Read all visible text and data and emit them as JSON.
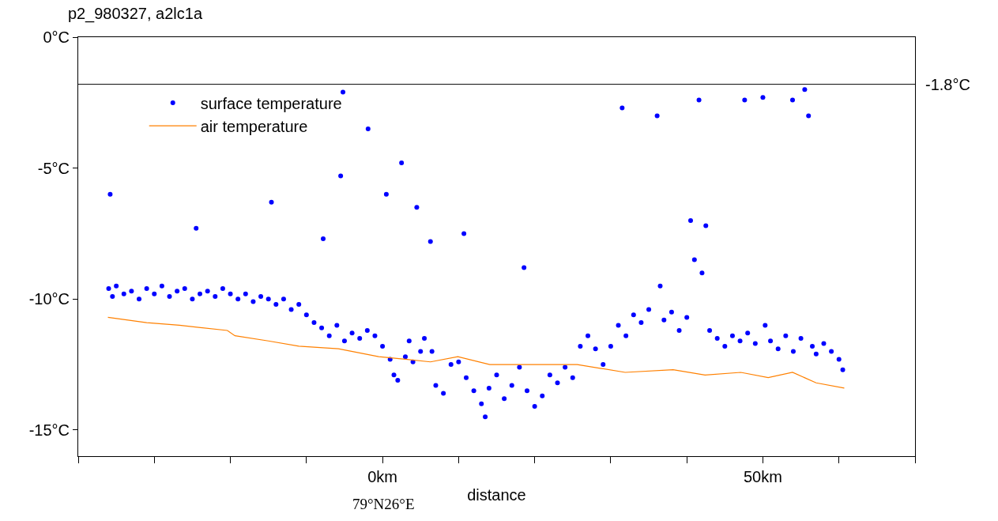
{
  "chart_data": {
    "type": "scatter",
    "title": "p2_980327, a2lc1a",
    "xlabel": "distance",
    "annotations": [
      "79°N26°E"
    ],
    "xlim": [
      -40,
      70
    ],
    "xticks": [
      {
        "value": -40,
        "label": null
      },
      {
        "value": -30,
        "label": null
      },
      {
        "value": -20,
        "label": null
      },
      {
        "value": -10,
        "label": null
      },
      {
        "value": 0,
        "label": "0km"
      },
      {
        "value": 10,
        "label": null
      },
      {
        "value": 20,
        "label": null
      },
      {
        "value": 30,
        "label": null
      },
      {
        "value": 40,
        "label": null
      },
      {
        "value": 50,
        "label": "50km"
      },
      {
        "value": 60,
        "label": null
      },
      {
        "value": 70,
        "label": null
      }
    ],
    "ylim": [
      -16,
      0
    ],
    "yticks": [
      {
        "value": 0,
        "label": "0°C"
      },
      {
        "value": -5,
        "label": "-5°C"
      },
      {
        "value": -10,
        "label": "-10°C"
      },
      {
        "value": -15,
        "label": "-15°C"
      }
    ],
    "grid": false,
    "legend": "top left",
    "ref_lines": [
      {
        "axis": "y",
        "value": -1.8,
        "label": "-1.8°C",
        "color": "#000000"
      }
    ],
    "series": [
      {
        "name": "surface temperature",
        "type": "scatter",
        "marker": "circle",
        "color": "#0000ff",
        "x": [
          -36,
          -35.8,
          -35.5,
          -35,
          -34,
          -33,
          -32,
          -31,
          -30,
          -29,
          -28,
          -27,
          -26,
          -25,
          -24.5,
          -24,
          -23,
          -22,
          -21,
          -20,
          -19,
          -18,
          -17,
          -16,
          -15,
          -14.6,
          -14,
          -13,
          -12,
          -11,
          -10,
          -9,
          -8,
          -7.8,
          -7,
          -6,
          -5.5,
          -5.2,
          -5,
          -4,
          -3,
          -2,
          -1.9,
          -1,
          0,
          0.5,
          1,
          1.5,
          2,
          2.5,
          3,
          3.5,
          4,
          4.5,
          5,
          5.5,
          6.3,
          6.5,
          7,
          8,
          9,
          10,
          10.7,
          11,
          12,
          13,
          13.5,
          14,
          15,
          16,
          17,
          18,
          18.6,
          19,
          20,
          21,
          22,
          23,
          24,
          25,
          26,
          27,
          28,
          29,
          30,
          31,
          31.5,
          32,
          33,
          34,
          35,
          36.1,
          36.5,
          37,
          38,
          39,
          40,
          40.5,
          41,
          41.6,
          42,
          42.5,
          43,
          44,
          45,
          46,
          47,
          47.6,
          48,
          49,
          50,
          50.3,
          51,
          52,
          53,
          53.9,
          54,
          55,
          55.5,
          56,
          56.5,
          57,
          58,
          59,
          60,
          60.5
        ],
        "values": [
          -9.6,
          -6.0,
          -9.9,
          -9.5,
          -9.8,
          -9.7,
          -10.0,
          -9.6,
          -9.8,
          -9.5,
          -9.9,
          -9.7,
          -9.6,
          -10.0,
          -7.3,
          -9.8,
          -9.7,
          -9.9,
          -9.6,
          -9.8,
          -10.0,
          -9.8,
          -10.1,
          -9.9,
          -10.0,
          -6.3,
          -10.2,
          -10.0,
          -10.4,
          -10.2,
          -10.6,
          -10.9,
          -11.1,
          -7.7,
          -11.4,
          -11.0,
          -5.3,
          -2.1,
          -11.6,
          -11.3,
          -11.5,
          -11.2,
          -3.5,
          -11.4,
          -11.8,
          -6.0,
          -12.3,
          -12.9,
          -13.1,
          -4.8,
          -12.2,
          -11.6,
          -12.4,
          -6.5,
          -12.0,
          -11.5,
          -7.8,
          -12.0,
          -13.3,
          -13.6,
          -12.5,
          -12.4,
          -7.5,
          -13.0,
          -13.5,
          -14.0,
          -14.5,
          -13.4,
          -12.9,
          -13.8,
          -13.3,
          -12.6,
          -8.8,
          -13.5,
          -14.1,
          -13.7,
          -12.9,
          -13.2,
          -12.6,
          -13.0,
          -11.8,
          -11.4,
          -11.9,
          -12.5,
          -11.8,
          -11.0,
          -2.7,
          -11.4,
          -10.6,
          -10.9,
          -10.4,
          -3.0,
          -9.5,
          -10.8,
          -10.5,
          -11.2,
          -10.7,
          -7.0,
          -8.5,
          -2.4,
          -9.0,
          -7.2,
          -11.2,
          -11.5,
          -11.8,
          -11.4,
          -11.6,
          -2.4,
          -11.3,
          -11.7,
          -2.3,
          -11.0,
          -11.6,
          -11.9,
          -11.4,
          -2.4,
          -12.0,
          -11.5,
          -2.0,
          -3.0,
          -11.8,
          -12.1,
          -11.7,
          -12.0,
          -12.3,
          -12.7
        ]
      },
      {
        "name": "air temperature",
        "type": "line",
        "color": "#ff8000",
        "line_style": "solid",
        "x": [
          -36.1,
          -31,
          -26.7,
          -20.4,
          -19.4,
          -15,
          -11,
          -5.8,
          -0.5,
          3,
          6.3,
          9.9,
          14.1,
          20,
          25.6,
          31.9,
          38.2,
          42.4,
          47.1,
          50.7,
          53.9,
          57,
          60.7
        ],
        "values": [
          -10.7,
          -10.9,
          -11.0,
          -11.2,
          -11.4,
          -11.6,
          -11.8,
          -11.9,
          -12.2,
          -12.3,
          -12.4,
          -12.2,
          -12.5,
          -12.5,
          -12.5,
          -12.8,
          -12.7,
          -12.9,
          -12.8,
          -13.0,
          -12.8,
          -13.2,
          -13.4
        ]
      }
    ]
  }
}
